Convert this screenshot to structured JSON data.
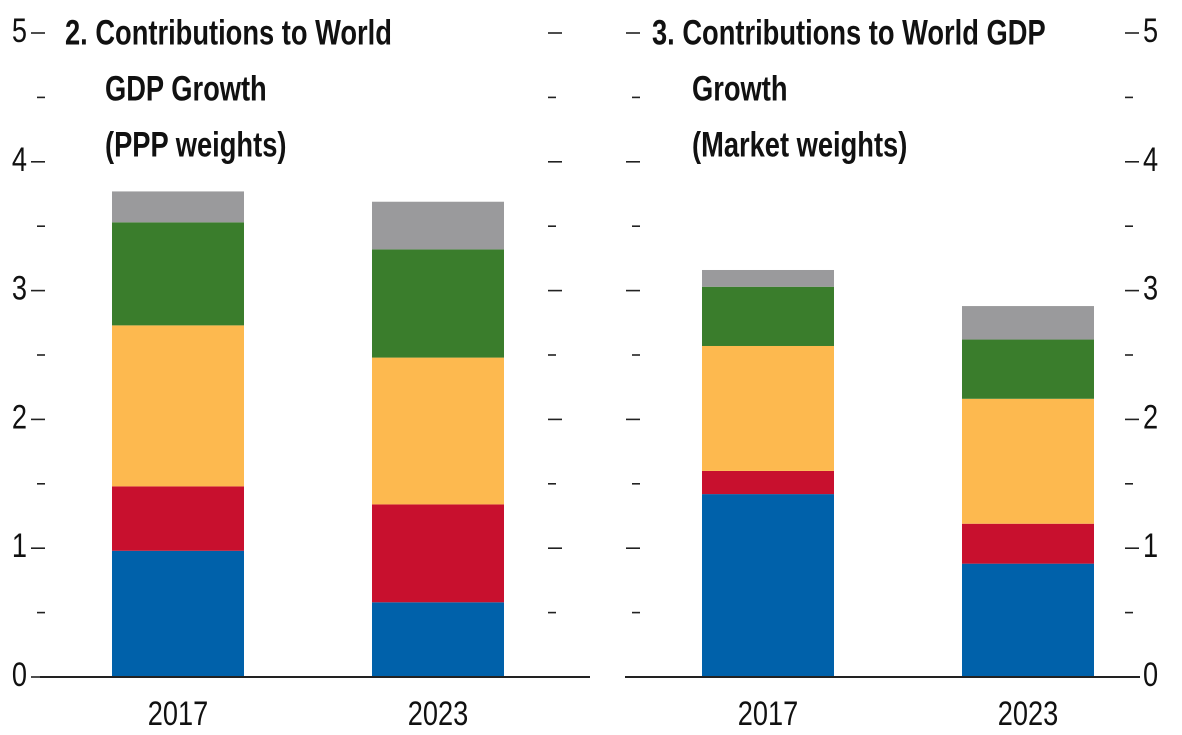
{
  "chart_data": [
    {
      "type": "bar",
      "stacked": true,
      "title": [
        "2. Contributions to World",
        "GDP Growth",
        "(PPP weights)"
      ],
      "categories": [
        "2017",
        "2023"
      ],
      "series": [
        {
          "color": "#0061aa",
          "values": [
            0.98,
            0.58
          ]
        },
        {
          "color": "#c8102e",
          "values": [
            0.5,
            0.76
          ]
        },
        {
          "color": "#fdb94f",
          "values": [
            1.25,
            1.14
          ]
        },
        {
          "color": "#3a7d2c",
          "values": [
            0.8,
            0.84
          ]
        },
        {
          "color": "#9a9a9c",
          "values": [
            0.24,
            0.37
          ]
        }
      ],
      "ylim": [
        0,
        5
      ],
      "yticks": [
        0,
        1,
        2,
        3,
        4,
        5
      ],
      "yticks_minor": [
        0.5,
        1.5,
        2.5,
        3.5,
        4.5
      ],
      "ytick_label_side": "left"
    },
    {
      "type": "bar",
      "stacked": true,
      "title": [
        "3. Contributions to World GDP",
        "Growth",
        "(Market weights)"
      ],
      "categories": [
        "2017",
        "2023"
      ],
      "series": [
        {
          "color": "#0061aa",
          "values": [
            1.42,
            0.88
          ]
        },
        {
          "color": "#c8102e",
          "values": [
            0.18,
            0.31
          ]
        },
        {
          "color": "#fdb94f",
          "values": [
            0.97,
            0.97
          ]
        },
        {
          "color": "#3a7d2c",
          "values": [
            0.46,
            0.46
          ]
        },
        {
          "color": "#9a9a9c",
          "values": [
            0.13,
            0.26
          ]
        }
      ],
      "ylim": [
        0,
        5
      ],
      "yticks": [
        0,
        1,
        2,
        3,
        4,
        5
      ],
      "yticks_minor": [
        0.5,
        1.5,
        2.5,
        3.5,
        4.5
      ],
      "ytick_label_side": "right"
    }
  ]
}
